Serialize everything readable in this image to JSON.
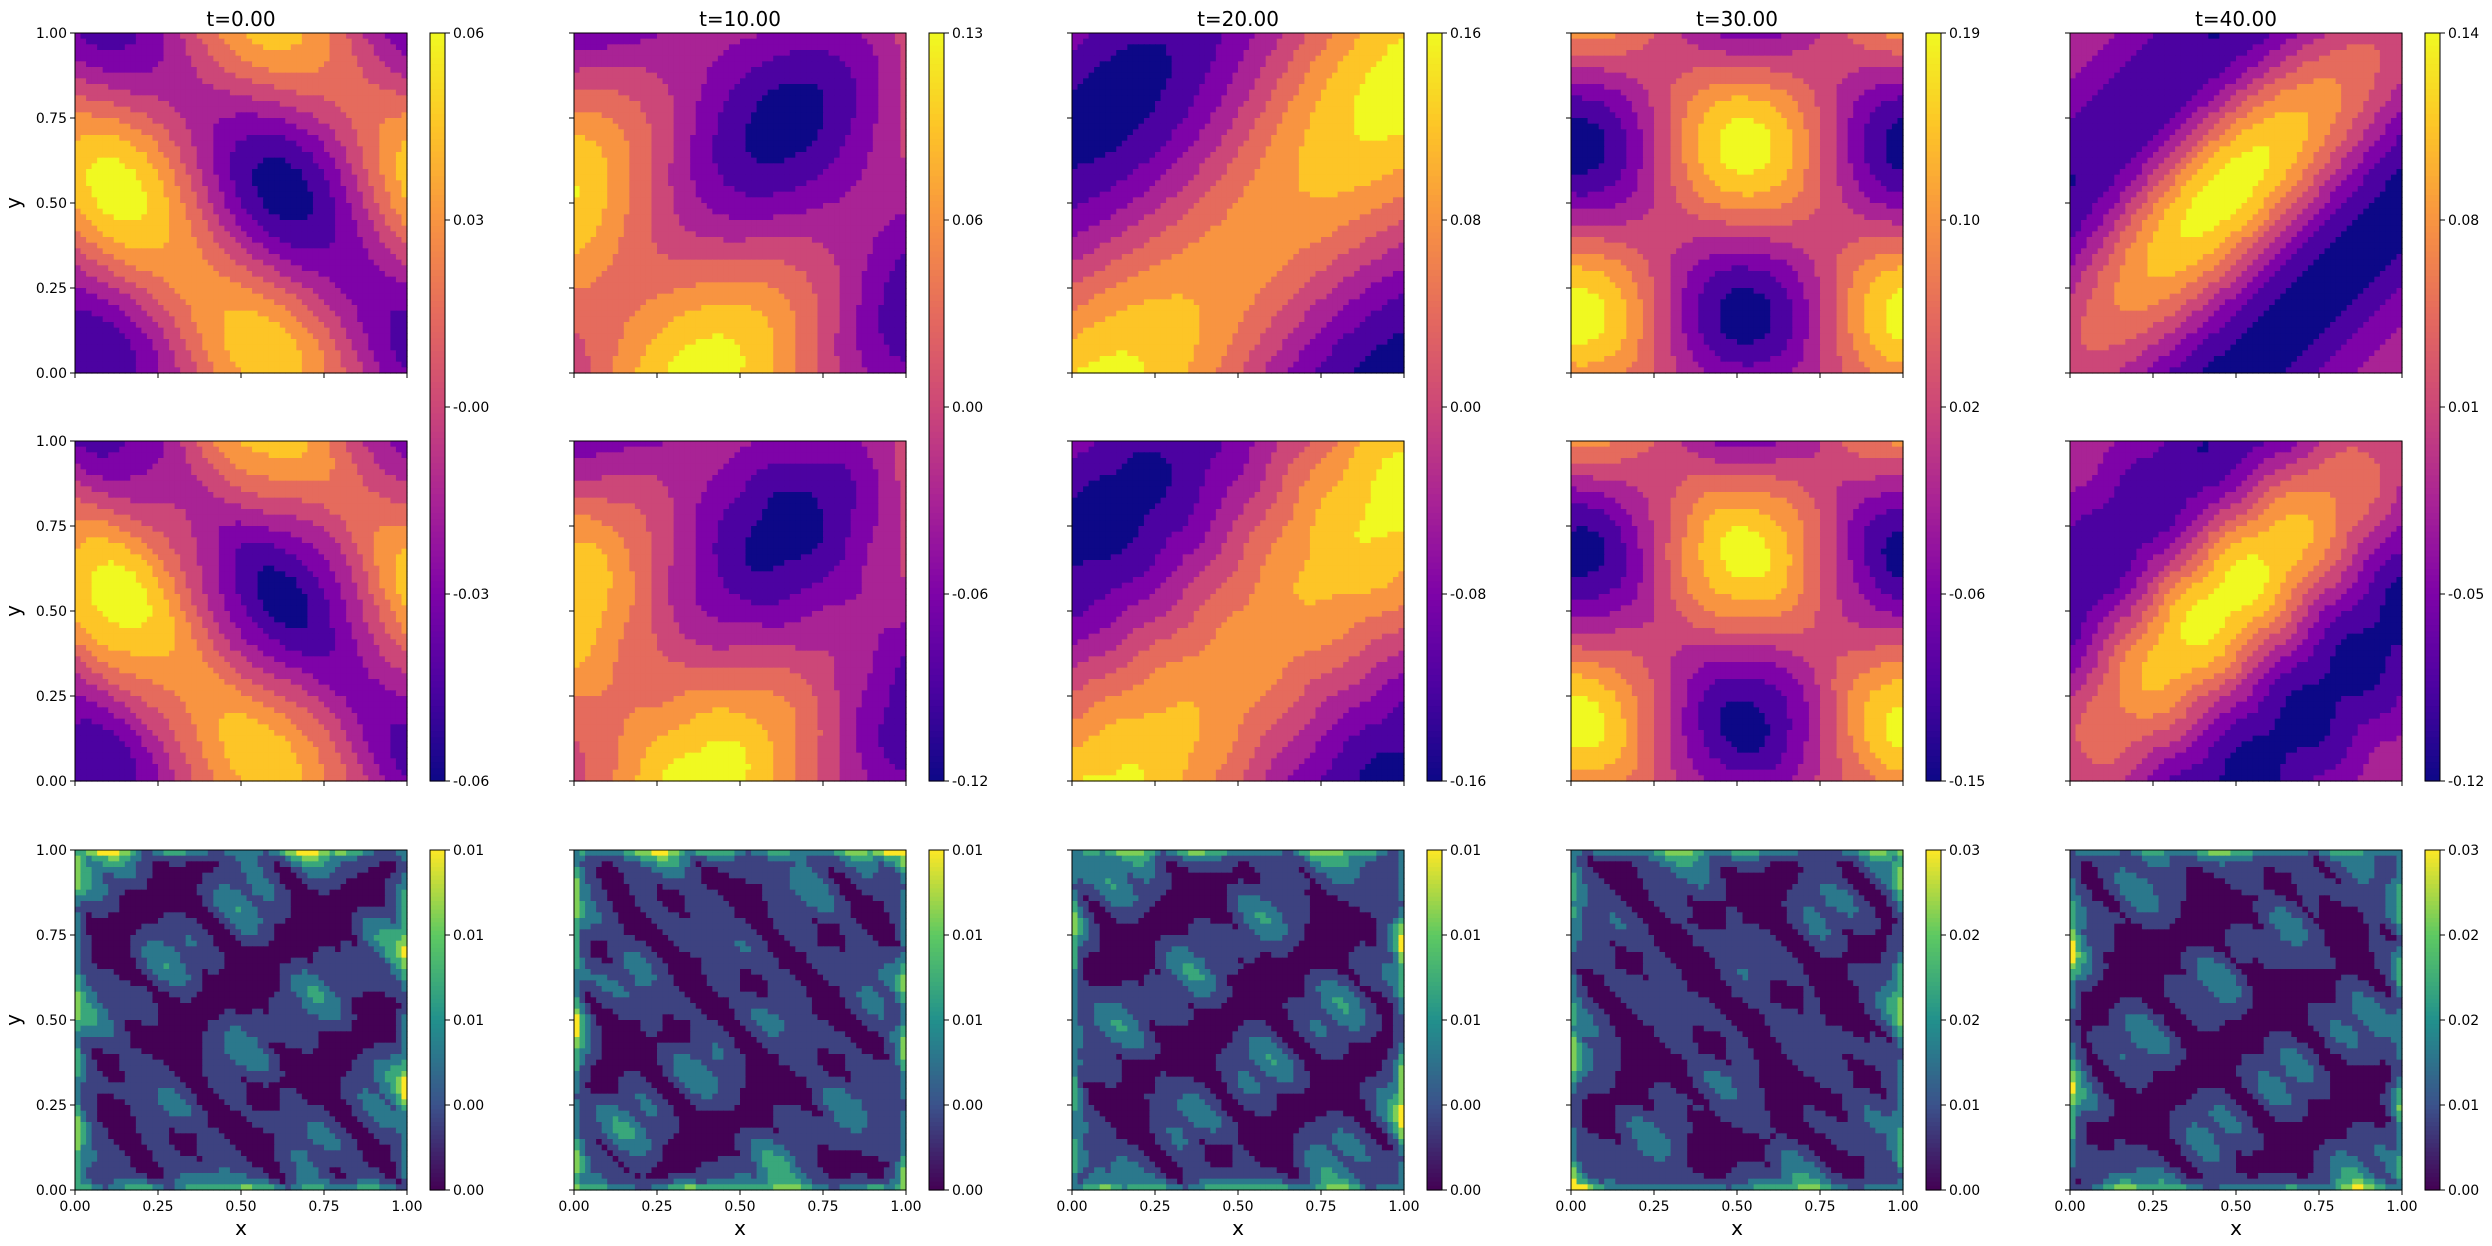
{
  "figure": {
    "times": [
      "t=0.00",
      "t=10.00",
      "t=20.00",
      "t=30.00",
      "t=40.00"
    ],
    "xlabel": "x",
    "ylabel": "y"
  },
  "colors": {
    "plasma": [
      "#0d0887",
      "#4c02a1",
      "#7e03a8",
      "#a92395",
      "#cc4778",
      "#e56b5d",
      "#f89441",
      "#fdc527",
      "#f0f921"
    ],
    "viridis": [
      "#440154",
      "#3b528b",
      "#21918c",
      "#5ec962",
      "#fde725"
    ]
  },
  "chart_data": {
    "type": "heatmap",
    "layout": "3 rows x 5 columns of filled contour plots",
    "axes": {
      "xlim": [
        0.0,
        1.0
      ],
      "ylim": [
        0.0,
        1.0
      ],
      "xticks": [
        "0.00",
        "0.25",
        "0.50",
        "0.75",
        "1.00"
      ],
      "yticks": [
        "0.00",
        "0.25",
        "0.50",
        "0.75",
        "1.00"
      ]
    },
    "field_colorbars": [
      {
        "time": "t=0.00",
        "ticks": [
          "-0.06",
          "-0.03",
          "-0.00",
          "0.03",
          "0.06"
        ]
      },
      {
        "time": "t=10.00",
        "ticks": [
          "-0.12",
          "-0.06",
          "0.00",
          "0.06",
          "0.13"
        ]
      },
      {
        "time": "t=20.00",
        "ticks": [
          "-0.16",
          "-0.08",
          "0.00",
          "0.08",
          "0.16"
        ]
      },
      {
        "time": "t=30.00",
        "ticks": [
          "-0.15",
          "-0.06",
          "0.02",
          "0.10",
          "0.19"
        ]
      },
      {
        "time": "t=40.00",
        "ticks": [
          "-0.12",
          "-0.05",
          "0.01",
          "0.08",
          "0.14"
        ]
      }
    ],
    "error_colorbars": [
      {
        "time": "t=0.00",
        "ticks": [
          "0.00",
          "0.00",
          "0.01",
          "0.01",
          "0.01"
        ]
      },
      {
        "time": "t=10.00",
        "ticks": [
          "0.00",
          "0.00",
          "0.01",
          "0.01",
          "0.01"
        ]
      },
      {
        "time": "t=20.00",
        "ticks": [
          "0.00",
          "0.00",
          "0.01",
          "0.01",
          "0.01"
        ]
      },
      {
        "time": "t=30.00",
        "ticks": [
          "0.00",
          "0.01",
          "0.02",
          "0.02",
          "0.03"
        ]
      },
      {
        "time": "t=40.00",
        "ticks": [
          "0.00",
          "0.01",
          "0.02",
          "0.02",
          "0.03"
        ]
      }
    ],
    "row_colormaps": [
      "plasma",
      "plasma",
      "viridis"
    ],
    "grid": false
  }
}
